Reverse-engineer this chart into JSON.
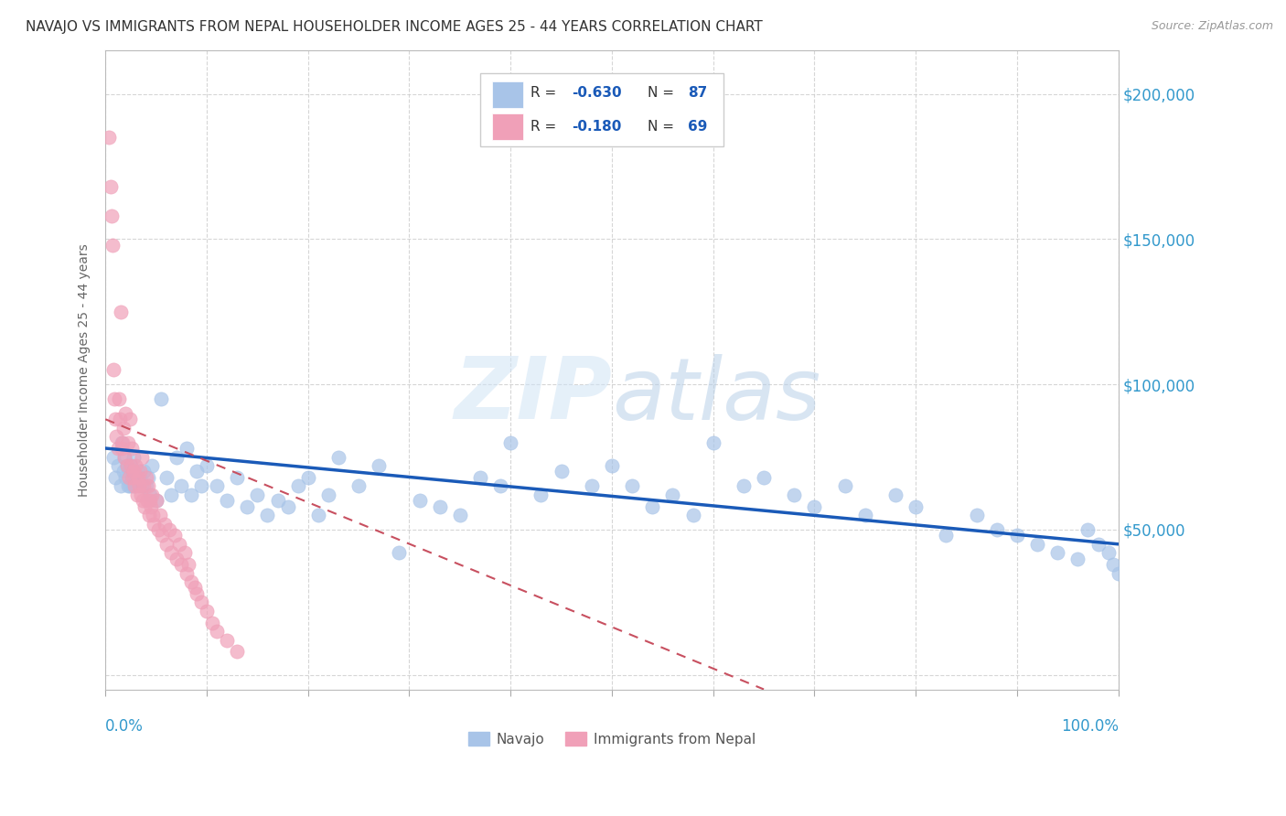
{
  "title": "NAVAJO VS IMMIGRANTS FROM NEPAL HOUSEHOLDER INCOME AGES 25 - 44 YEARS CORRELATION CHART",
  "source": "Source: ZipAtlas.com",
  "ylabel": "Householder Income Ages 25 - 44 years",
  "watermark": "ZIPatlas",
  "navajo_R": -0.63,
  "navajo_N": 87,
  "nepal_R": -0.18,
  "nepal_N": 69,
  "navajo_color": "#a8c4e8",
  "nepal_color": "#f0a0b8",
  "navajo_line_color": "#1a5ab8",
  "nepal_line_color": "#c85060",
  "yright_labels": [
    "$50,000",
    "$100,000",
    "$150,000",
    "$200,000"
  ],
  "yright_values": [
    50000,
    100000,
    150000,
    200000
  ],
  "xlim": [
    0,
    1.0
  ],
  "ylim": [
    -5000,
    215000
  ],
  "background_color": "#ffffff",
  "grid_color": "#cccccc",
  "navajo_x": [
    0.008,
    0.01,
    0.012,
    0.015,
    0.016,
    0.018,
    0.019,
    0.02,
    0.021,
    0.022,
    0.023,
    0.024,
    0.025,
    0.026,
    0.027,
    0.028,
    0.03,
    0.032,
    0.034,
    0.036,
    0.038,
    0.04,
    0.042,
    0.044,
    0.046,
    0.05,
    0.055,
    0.06,
    0.065,
    0.07,
    0.075,
    0.08,
    0.085,
    0.09,
    0.095,
    0.1,
    0.11,
    0.12,
    0.13,
    0.14,
    0.15,
    0.16,
    0.17,
    0.18,
    0.19,
    0.2,
    0.21,
    0.22,
    0.23,
    0.25,
    0.27,
    0.29,
    0.31,
    0.33,
    0.35,
    0.37,
    0.39,
    0.4,
    0.43,
    0.45,
    0.48,
    0.5,
    0.52,
    0.54,
    0.56,
    0.58,
    0.6,
    0.63,
    0.65,
    0.68,
    0.7,
    0.73,
    0.75,
    0.78,
    0.8,
    0.83,
    0.86,
    0.88,
    0.9,
    0.92,
    0.94,
    0.96,
    0.97,
    0.98,
    0.99,
    0.995,
    1.0
  ],
  "navajo_y": [
    75000,
    68000,
    72000,
    65000,
    80000,
    70000,
    75000,
    68000,
    72000,
    65000,
    70000,
    65000,
    72000,
    68000,
    65000,
    75000,
    65000,
    70000,
    68000,
    65000,
    70000,
    65000,
    68000,
    62000,
    72000,
    60000,
    95000,
    68000,
    62000,
    75000,
    65000,
    78000,
    62000,
    70000,
    65000,
    72000,
    65000,
    60000,
    68000,
    58000,
    62000,
    55000,
    60000,
    58000,
    65000,
    68000,
    55000,
    62000,
    75000,
    65000,
    72000,
    42000,
    60000,
    58000,
    55000,
    68000,
    65000,
    80000,
    62000,
    70000,
    65000,
    72000,
    65000,
    58000,
    62000,
    55000,
    80000,
    65000,
    68000,
    62000,
    58000,
    65000,
    55000,
    62000,
    58000,
    48000,
    55000,
    50000,
    48000,
    45000,
    42000,
    40000,
    50000,
    45000,
    42000,
    38000,
    35000
  ],
  "nepal_x": [
    0.003,
    0.005,
    0.006,
    0.007,
    0.008,
    0.009,
    0.01,
    0.011,
    0.012,
    0.013,
    0.014,
    0.015,
    0.016,
    0.017,
    0.018,
    0.019,
    0.02,
    0.021,
    0.022,
    0.023,
    0.024,
    0.025,
    0.026,
    0.027,
    0.028,
    0.029,
    0.03,
    0.031,
    0.032,
    0.033,
    0.034,
    0.035,
    0.036,
    0.037,
    0.038,
    0.039,
    0.04,
    0.041,
    0.042,
    0.043,
    0.044,
    0.045,
    0.046,
    0.047,
    0.048,
    0.05,
    0.052,
    0.054,
    0.056,
    0.058,
    0.06,
    0.063,
    0.065,
    0.068,
    0.07,
    0.073,
    0.075,
    0.078,
    0.08,
    0.082,
    0.085,
    0.088,
    0.09,
    0.095,
    0.1,
    0.105,
    0.11,
    0.12,
    0.13
  ],
  "nepal_y": [
    185000,
    168000,
    158000,
    148000,
    105000,
    95000,
    88000,
    82000,
    78000,
    95000,
    88000,
    125000,
    78000,
    80000,
    85000,
    75000,
    90000,
    72000,
    80000,
    68000,
    88000,
    72000,
    78000,
    68000,
    70000,
    65000,
    72000,
    62000,
    68000,
    65000,
    70000,
    62000,
    75000,
    60000,
    65000,
    58000,
    68000,
    60000,
    65000,
    55000,
    60000,
    58000,
    62000,
    55000,
    52000,
    60000,
    50000,
    55000,
    48000,
    52000,
    45000,
    50000,
    42000,
    48000,
    40000,
    45000,
    38000,
    42000,
    35000,
    38000,
    32000,
    30000,
    28000,
    25000,
    22000,
    18000,
    15000,
    12000,
    8000
  ]
}
